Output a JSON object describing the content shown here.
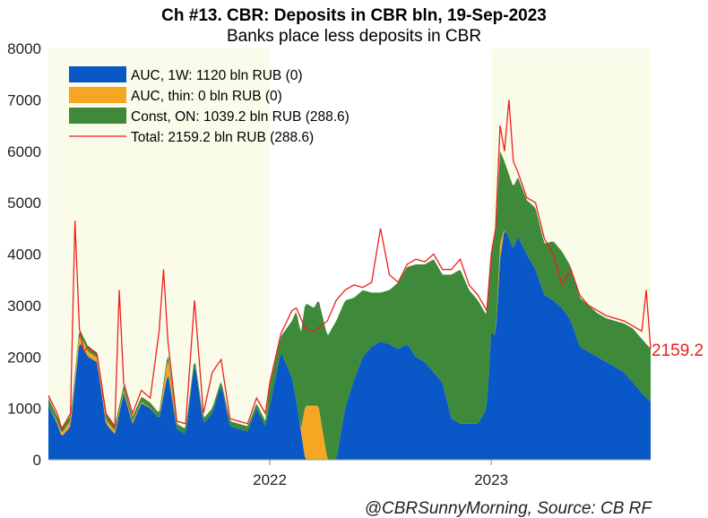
{
  "chart_data": {
    "type": "area",
    "title": "Ch #13. CBR: Deposits in CBR bln, 19-Sep-2023",
    "subtitle": "Banks place less deposits in CBR",
    "source": "@CBRSunnyMorning, Source: CB RF",
    "ylim": [
      0,
      8000
    ],
    "yticks": [
      "0",
      "1000",
      "2000",
      "3000",
      "4000",
      "5000",
      "6000",
      "7000",
      "8000"
    ],
    "xticks": [
      {
        "label": "2022",
        "x": 2022.0
      },
      {
        "label": "2023",
        "x": 2023.0
      }
    ],
    "xlim": [
      2021.0,
      2023.72
    ],
    "shaded_periods": [
      [
        2021.0,
        2022.0
      ],
      [
        2023.0,
        2023.72
      ]
    ],
    "shade_color": "#fbfbea",
    "last_value_label": "2159.2",
    "legend_position": "top-left",
    "legend": [
      {
        "label": "AUC, 1W: 1120 bln RUB (0)",
        "color": "#0a58c8",
        "kind": "box"
      },
      {
        "label": "AUC, thin: 0 bln RUB (0)",
        "color": "#f5a623",
        "kind": "box"
      },
      {
        "label": "Const, ON: 1039.2 bln RUB (288.6)",
        "color": "#3e8a3a",
        "kind": "box"
      },
      {
        "label": "Total: 2159.2 bln RUB (288.6)",
        "color": "#e8221c",
        "kind": "line"
      }
    ],
    "series": [
      {
        "name": "AUC, 1W",
        "color": "#0a58c8",
        "x": [
          2021.0,
          2021.04,
          2021.06,
          2021.1,
          2021.14,
          2021.18,
          2021.22,
          2021.26,
          2021.3,
          2021.34,
          2021.38,
          2021.42,
          2021.46,
          2021.5,
          2021.54,
          2021.58,
          2021.62,
          2021.66,
          2021.7,
          2021.74,
          2021.78,
          2021.82,
          2021.86,
          2021.9,
          2021.94,
          2021.98,
          2022.0,
          2022.05,
          2022.1,
          2022.12,
          2022.16,
          2022.2,
          2022.26,
          2022.3,
          2022.34,
          2022.38,
          2022.42,
          2022.46,
          2022.5,
          2022.54,
          2022.58,
          2022.62,
          2022.66,
          2022.7,
          2022.74,
          2022.78,
          2022.82,
          2022.86,
          2022.9,
          2022.94,
          2022.98,
          2023.0,
          2023.02,
          2023.04,
          2023.06,
          2023.1,
          2023.12,
          2023.16,
          2023.2,
          2023.24,
          2023.28,
          2023.32,
          2023.36,
          2023.4,
          2023.44,
          2023.48,
          2023.52,
          2023.56,
          2023.6,
          2023.64,
          2023.68,
          2023.72
        ],
        "values": [
          1050,
          700,
          450,
          650,
          2300,
          2000,
          1900,
          700,
          500,
          1300,
          700,
          1100,
          1000,
          800,
          1700,
          600,
          500,
          1900,
          700,
          900,
          1450,
          650,
          600,
          550,
          1000,
          650,
          1050,
          2100,
          1600,
          1150,
          0,
          0,
          0,
          0,
          1000,
          1550,
          2000,
          2200,
          2300,
          2250,
          2150,
          2250,
          2000,
          1900,
          1700,
          1500,
          800,
          700,
          700,
          700,
          1000,
          2500,
          2400,
          3900,
          4500,
          4100,
          4350,
          4000,
          3700,
          3200,
          3100,
          2950,
          2700,
          2200,
          2100,
          2000,
          1900,
          1800,
          1700,
          1500,
          1300,
          1120
        ]
      },
      {
        "name": "AUC, thin",
        "color": "#f5a623",
        "x": [
          2021.0,
          2021.14,
          2021.18,
          2021.5,
          2021.54,
          2021.58,
          2022.1,
          2022.14,
          2022.16,
          2022.2,
          2022.22,
          2022.26,
          2023.0,
          2023.02,
          2023.04,
          2023.06,
          2023.72
        ],
        "values": [
          0,
          150,
          100,
          0,
          300,
          0,
          0,
          0,
          1050,
          1050,
          1050,
          0,
          0,
          0,
          300,
          0,
          0
        ]
      },
      {
        "name": "Const, ON",
        "color": "#3e8a3a",
        "x": [
          2021.0,
          2021.04,
          2021.06,
          2021.1,
          2021.14,
          2021.18,
          2021.22,
          2021.26,
          2021.3,
          2021.34,
          2021.38,
          2021.42,
          2021.46,
          2021.5,
          2021.54,
          2021.58,
          2021.62,
          2021.66,
          2021.7,
          2021.74,
          2021.78,
          2021.82,
          2021.86,
          2021.9,
          2021.94,
          2021.98,
          2022.0,
          2022.05,
          2022.1,
          2022.12,
          2022.16,
          2022.2,
          2022.26,
          2022.3,
          2022.34,
          2022.38,
          2022.42,
          2022.46,
          2022.5,
          2022.54,
          2022.58,
          2022.62,
          2022.66,
          2022.7,
          2022.74,
          2022.78,
          2022.82,
          2022.86,
          2022.9,
          2022.94,
          2022.98,
          2023.0,
          2023.02,
          2023.04,
          2023.06,
          2023.1,
          2023.12,
          2023.16,
          2023.2,
          2023.24,
          2023.28,
          2023.32,
          2023.36,
          2023.4,
          2023.44,
          2023.48,
          2023.52,
          2023.56,
          2023.6,
          2023.64,
          2023.68,
          2023.72
        ],
        "values": [
          150,
          100,
          100,
          100,
          100,
          100,
          100,
          100,
          100,
          100,
          100,
          100,
          100,
          100,
          100,
          100,
          100,
          100,
          100,
          100,
          100,
          100,
          100,
          100,
          100,
          100,
          400,
          300,
          1100,
          1750,
          2000,
          1900,
          2400,
          2700,
          2100,
          1600,
          1300,
          1050,
          950,
          1050,
          1300,
          1500,
          1800,
          1900,
          2200,
          2100,
          2800,
          3000,
          2600,
          2400,
          1800,
          1500,
          2000,
          1800,
          1300,
          1200,
          1150,
          1050,
          1200,
          1000,
          1150,
          1100,
          1050,
          950,
          900,
          850,
          850,
          900,
          950,
          1050,
          1050,
          1039
        ]
      }
    ],
    "total": {
      "name": "Total",
      "color": "#e8221c",
      "x": [
        2021.0,
        2021.04,
        2021.06,
        2021.1,
        2021.12,
        2021.14,
        2021.16,
        2021.18,
        2021.22,
        2021.26,
        2021.3,
        2021.32,
        2021.34,
        2021.38,
        2021.42,
        2021.46,
        2021.5,
        2021.52,
        2021.54,
        2021.58,
        2021.62,
        2021.66,
        2021.68,
        2021.7,
        2021.74,
        2021.78,
        2021.82,
        2021.86,
        2021.9,
        2021.94,
        2021.98,
        2022.0,
        2022.05,
        2022.1,
        2022.12,
        2022.16,
        2022.2,
        2022.26,
        2022.3,
        2022.34,
        2022.38,
        2022.42,
        2022.46,
        2022.5,
        2022.54,
        2022.58,
        2022.62,
        2022.66,
        2022.7,
        2022.74,
        2022.78,
        2022.82,
        2022.86,
        2022.9,
        2022.94,
        2022.98,
        2023.0,
        2023.02,
        2023.04,
        2023.06,
        2023.08,
        2023.1,
        2023.12,
        2023.16,
        2023.2,
        2023.24,
        2023.28,
        2023.32,
        2023.36,
        2023.4,
        2023.44,
        2023.48,
        2023.52,
        2023.56,
        2023.6,
        2023.64,
        2023.68,
        2023.7,
        2023.72
      ],
      "values": [
        1250,
        900,
        600,
        900,
        4650,
        2550,
        2100,
        2200,
        2050,
        900,
        650,
        3300,
        1500,
        900,
        1350,
        1200,
        2500,
        3700,
        2300,
        750,
        700,
        3100,
        2000,
        900,
        1700,
        1950,
        800,
        750,
        700,
        1200,
        900,
        1500,
        2450,
        2900,
        2950,
        2550,
        2500,
        2700,
        3100,
        3300,
        3400,
        3350,
        3450,
        4500,
        3600,
        3450,
        3800,
        3900,
        3850,
        4000,
        3700,
        3700,
        3900,
        3400,
        3200,
        2900,
        4000,
        4500,
        6500,
        6000,
        7000,
        5800,
        5600,
        5100,
        5000,
        4300,
        4000,
        3400,
        3700,
        3200,
        3000,
        2900,
        2800,
        2750,
        2700,
        2600,
        2500,
        3300,
        2159
      ]
    }
  }
}
